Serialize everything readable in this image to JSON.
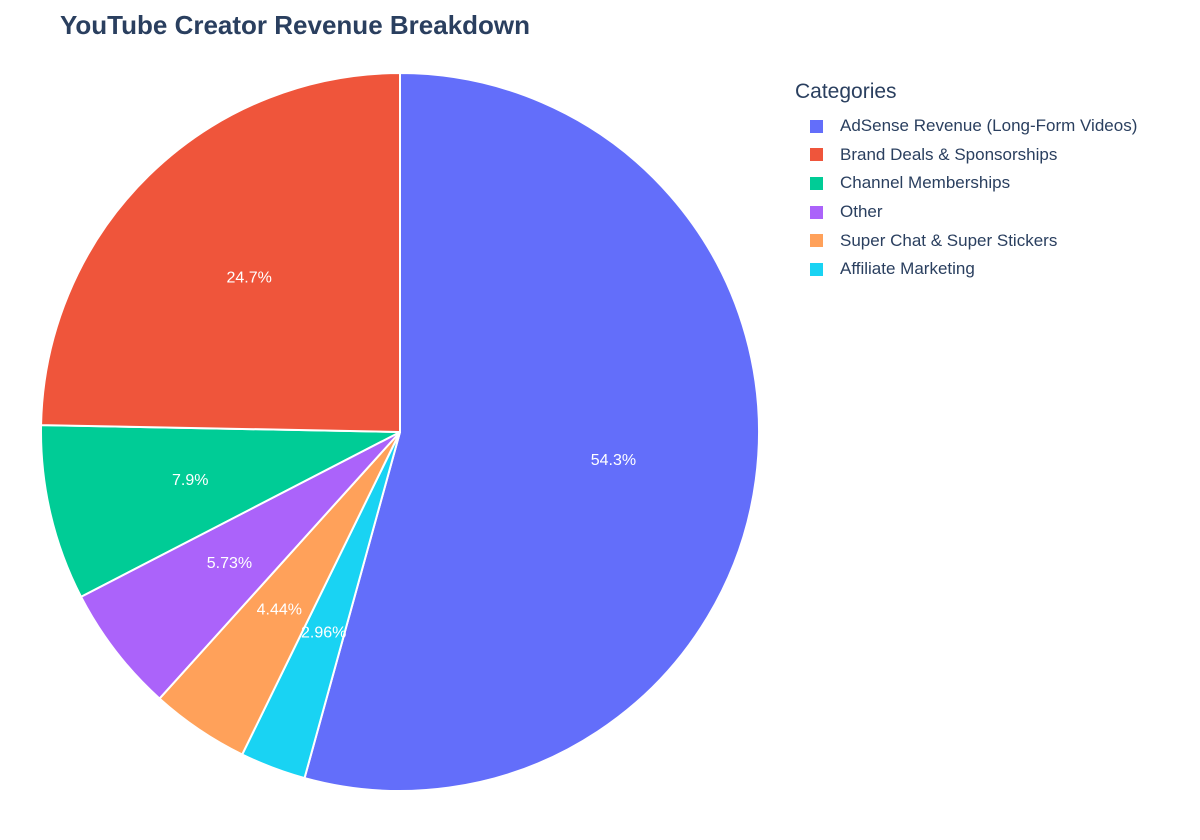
{
  "chart_data": {
    "type": "pie",
    "title": "YouTube Creator Revenue Breakdown",
    "legend_title": "Categories",
    "legend_position": "top-right",
    "direction": "clockwise",
    "start": "top",
    "slices": [
      {
        "label": "AdSense Revenue (Long-Form Videos)",
        "value": 54.3,
        "text": "54.3%",
        "color": "#636efa"
      },
      {
        "label": "Affiliate Marketing",
        "value": 2.96,
        "text": "2.96%",
        "color": "#19d3f3"
      },
      {
        "label": "Super Chat & Super Stickers",
        "value": 4.44,
        "text": "4.44%",
        "color": "#ffa15a"
      },
      {
        "label": "Other",
        "value": 5.73,
        "text": "5.73%",
        "color": "#ab63fa"
      },
      {
        "label": "Channel Memberships",
        "value": 7.9,
        "text": "7.9%",
        "color": "#00cc96"
      },
      {
        "label": "Brand Deals & Sponsorships",
        "value": 24.7,
        "text": "24.7%",
        "color": "#ef553b"
      }
    ],
    "legend": [
      {
        "label": "AdSense Revenue (Long-Form Videos)",
        "color": "#636efa"
      },
      {
        "label": "Brand Deals & Sponsorships",
        "color": "#ef553b"
      },
      {
        "label": "Channel Memberships",
        "color": "#00cc96"
      },
      {
        "label": "Other",
        "color": "#ab63fa"
      },
      {
        "label": "Super Chat & Super Stickers",
        "color": "#ffa15a"
      },
      {
        "label": "Affiliate Marketing",
        "color": "#19d3f3"
      }
    ]
  }
}
